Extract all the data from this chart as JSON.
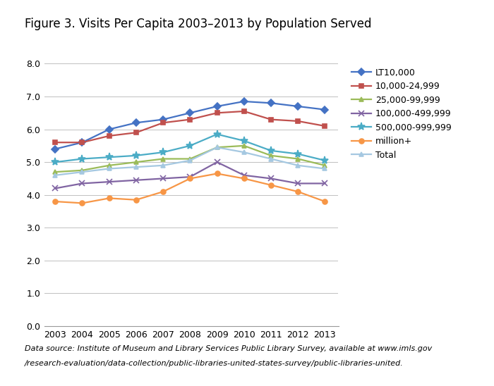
{
  "title": "Figure 3. Visits Per Capita 2003–2013 by Population Served",
  "years": [
    2003,
    2004,
    2005,
    2006,
    2007,
    2008,
    2009,
    2010,
    2011,
    2012,
    2013
  ],
  "series": [
    {
      "label": "LT10,000",
      "color": "#4472C4",
      "marker": "D",
      "markersize": 5,
      "values": [
        5.4,
        5.6,
        6.0,
        6.2,
        6.3,
        6.5,
        6.7,
        6.85,
        6.8,
        6.7,
        6.6
      ]
    },
    {
      "label": "10,000-24,999",
      "color": "#C0504D",
      "marker": "s",
      "markersize": 5,
      "values": [
        5.6,
        5.6,
        5.8,
        5.9,
        6.2,
        6.3,
        6.5,
        6.55,
        6.3,
        6.25,
        6.1
      ]
    },
    {
      "label": "25,000-99,999",
      "color": "#9BBB59",
      "marker": "^",
      "markersize": 5,
      "values": [
        4.7,
        4.75,
        4.9,
        5.0,
        5.1,
        5.1,
        5.45,
        5.5,
        5.2,
        5.1,
        4.9
      ]
    },
    {
      "label": "100,000-499,999",
      "color": "#8064A2",
      "marker": "x",
      "markersize": 6,
      "values": [
        4.2,
        4.35,
        4.4,
        4.45,
        4.5,
        4.55,
        5.0,
        4.6,
        4.5,
        4.35,
        4.35
      ]
    },
    {
      "label": "500,000-999,999",
      "color": "#4BACC6",
      "marker": "*",
      "markersize": 8,
      "values": [
        5.0,
        5.1,
        5.15,
        5.2,
        5.3,
        5.5,
        5.85,
        5.65,
        5.35,
        5.25,
        5.05
      ]
    },
    {
      "label": "million+",
      "color": "#F79646",
      "marker": "o",
      "markersize": 5,
      "values": [
        3.8,
        3.75,
        3.9,
        3.85,
        4.1,
        4.5,
        4.65,
        4.5,
        4.3,
        4.1,
        3.8
      ]
    },
    {
      "label": "Total",
      "color": "#A5C8E1",
      "marker": "^",
      "markersize": 5,
      "values": [
        4.6,
        4.7,
        4.8,
        4.85,
        4.9,
        5.05,
        5.45,
        5.3,
        5.1,
        4.9,
        4.8
      ]
    }
  ],
  "ylim": [
    0.0,
    8.0
  ],
  "yticks": [
    0.0,
    1.0,
    2.0,
    3.0,
    4.0,
    5.0,
    6.0,
    7.0,
    8.0
  ],
  "footnote_italic": "Data source:",
  "footnote_line1": " Institute of Museum and Library Services Public Library Survey, available at www.imls.gov",
  "footnote_line2": "/research-evaluation/data-collection/public-libraries-united-states-survey/public-libraries-united.",
  "top_bar_color": "#7AAB3A",
  "background_color": "#FFFFFF",
  "grid_color": "#C0C0C0",
  "title_fontsize": 12,
  "tick_fontsize": 9,
  "legend_fontsize": 9,
  "footnote_fontsize": 8
}
